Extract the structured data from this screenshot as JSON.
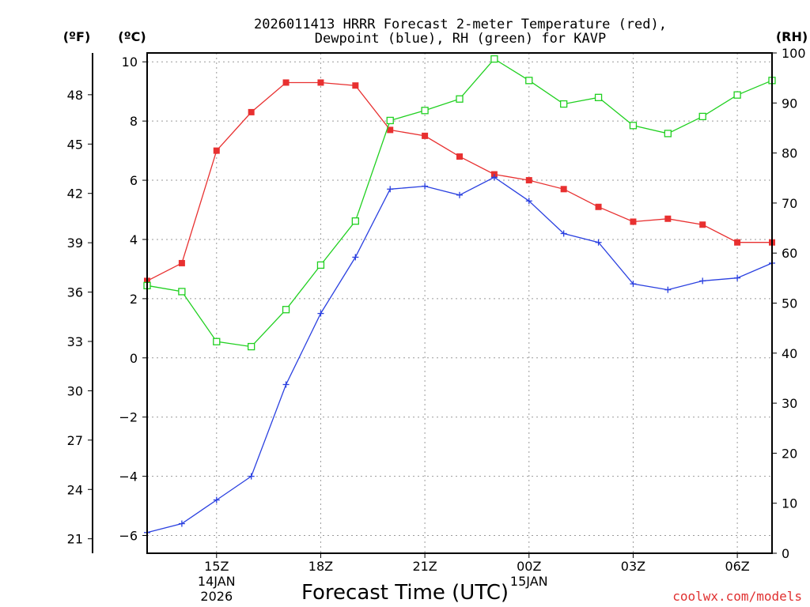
{
  "chart_data": {
    "type": "line",
    "title_line1": "2026011413 HRRR Forecast 2-meter Temperature (red),",
    "title_line2": "Dewpoint (blue), RH (green) for KAVP",
    "unit_f": "(ºF)",
    "unit_c": "(ºC)",
    "unit_rh": "(RH)",
    "xlabel": "Forecast Time (UTC)",
    "credit": "coolwx.com/models",
    "x_hours": [
      13,
      14,
      15,
      16,
      17,
      18,
      19,
      20,
      21,
      22,
      23,
      24,
      25,
      26,
      27,
      28,
      29,
      30,
      31
    ],
    "x_range": [
      13,
      31
    ],
    "x_ticks": [
      {
        "hour": 15,
        "label": "15Z",
        "sub1": "14JAN",
        "sub2": "2026"
      },
      {
        "hour": 18,
        "label": "18Z",
        "sub1": "",
        "sub2": ""
      },
      {
        "hour": 21,
        "label": "21Z",
        "sub1": "",
        "sub2": ""
      },
      {
        "hour": 24,
        "label": "00Z",
        "sub1": "15JAN",
        "sub2": ""
      },
      {
        "hour": 27,
        "label": "03Z",
        "sub1": "",
        "sub2": ""
      },
      {
        "hour": 30,
        "label": "06Z",
        "sub1": "",
        "sub2": ""
      }
    ],
    "c_range": [
      -6.6,
      10.3
    ],
    "c_ticks": [
      "−6",
      "−4",
      "−2",
      "0",
      "2",
      "4",
      "6",
      "8",
      "10"
    ],
    "c_tick_values": [
      -6,
      -4,
      -2,
      0,
      2,
      4,
      6,
      8,
      10
    ],
    "f_ticks": [
      "21",
      "24",
      "27",
      "30",
      "33",
      "36",
      "39",
      "42",
      "45",
      "48"
    ],
    "f_tick_values": [
      21,
      24,
      27,
      30,
      33,
      36,
      39,
      42,
      45,
      48
    ],
    "rh_range": [
      0,
      100
    ],
    "rh_ticks": [
      "0",
      "10",
      "20",
      "30",
      "40",
      "50",
      "60",
      "70",
      "80",
      "90",
      "100"
    ],
    "rh_tick_values": [
      0,
      10,
      20,
      30,
      40,
      50,
      60,
      70,
      80,
      90,
      100
    ],
    "series": [
      {
        "name": "Temperature",
        "color": "#e83030",
        "marker": "filled-square",
        "axis": "c",
        "values": [
          2.6,
          3.2,
          7.0,
          8.3,
          9.3,
          9.3,
          9.2,
          7.7,
          7.5,
          6.8,
          6.2,
          6.0,
          5.7,
          5.1,
          4.6,
          4.7,
          4.5,
          3.9,
          3.9
        ]
      },
      {
        "name": "Dewpoint",
        "color": "#2a40e0",
        "marker": "plus",
        "axis": "c",
        "values": [
          -5.9,
          -5.6,
          -4.8,
          -4.0,
          -0.9,
          1.5,
          3.4,
          5.7,
          5.8,
          5.5,
          6.1,
          5.3,
          4.2,
          3.9,
          2.5,
          2.3,
          2.6,
          2.7,
          3.2
        ]
      },
      {
        "name": "RH",
        "color": "#20d020",
        "marker": "open-square",
        "axis": "rh",
        "values": [
          53.5,
          52.3,
          42.3,
          41.3,
          48.7,
          57.6,
          66.4,
          86.5,
          88.5,
          90.8,
          98.8,
          94.5,
          89.8,
          91.1,
          85.5,
          83.9,
          87.3,
          91.6,
          94.5
        ]
      }
    ]
  }
}
